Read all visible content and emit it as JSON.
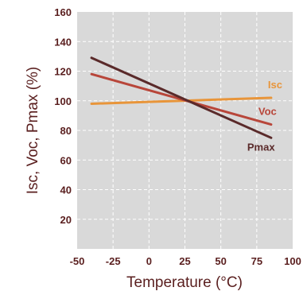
{
  "chart_data": {
    "type": "line",
    "xlabel": "Temperature (°C)",
    "ylabel": "Isc, Voc, Pmax (%)",
    "xlim": [
      -50,
      100
    ],
    "ylim": [
      0,
      160
    ],
    "x_ticks": [
      "-50",
      "-25",
      "0",
      "25",
      "50",
      "75",
      "100"
    ],
    "y_ticks": [
      "20",
      "40",
      "60",
      "80",
      "100",
      "120",
      "140",
      "160"
    ],
    "grid": true,
    "series": [
      {
        "name": "Isc",
        "color": "#e8953a",
        "x": [
          -40,
          85
        ],
        "y": [
          98,
          102
        ]
      },
      {
        "name": "Voc",
        "color": "#b8463a",
        "x": [
          -40,
          85
        ],
        "y": [
          118,
          84
        ]
      },
      {
        "name": "Pmax",
        "color": "#5a2a2a",
        "x": [
          -40,
          85
        ],
        "y": [
          129,
          75
        ]
      }
    ]
  }
}
